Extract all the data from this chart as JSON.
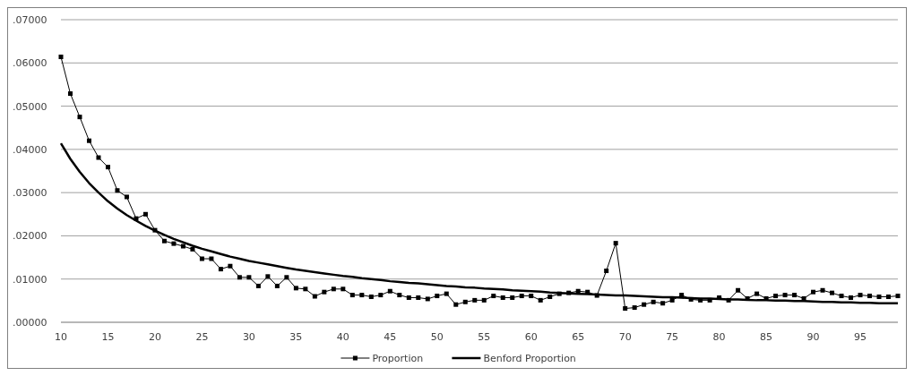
{
  "chart_data": {
    "type": "line",
    "x": [
      10,
      11,
      12,
      13,
      14,
      15,
      16,
      17,
      18,
      19,
      20,
      21,
      22,
      23,
      24,
      25,
      26,
      27,
      28,
      29,
      30,
      31,
      32,
      33,
      34,
      35,
      36,
      37,
      38,
      39,
      40,
      41,
      42,
      43,
      44,
      45,
      46,
      47,
      48,
      49,
      50,
      51,
      52,
      53,
      54,
      55,
      56,
      57,
      58,
      59,
      60,
      61,
      62,
      63,
      64,
      65,
      66,
      67,
      68,
      69,
      70,
      71,
      72,
      73,
      74,
      75,
      76,
      77,
      78,
      79,
      80,
      81,
      82,
      83,
      84,
      85,
      86,
      87,
      88,
      89,
      90,
      91,
      92,
      93,
      94,
      95,
      96,
      97,
      98,
      99
    ],
    "xlim": [
      10,
      99
    ],
    "xticks": [
      10,
      15,
      20,
      25,
      30,
      35,
      40,
      45,
      50,
      55,
      60,
      65,
      70,
      75,
      80,
      85,
      90,
      95
    ],
    "ylim": [
      0,
      0.07
    ],
    "yticks": [
      {
        "value": 0,
        "label": ".00000"
      },
      {
        "value": 0.01,
        "label": ".01000"
      },
      {
        "value": 0.02,
        "label": ".02000"
      },
      {
        "value": 0.03,
        "label": ".03000"
      },
      {
        "value": 0.04,
        "label": ".04000"
      },
      {
        "value": 0.05,
        "label": ".05000"
      },
      {
        "value": 0.06,
        "label": ".06000"
      },
      {
        "value": 0.07,
        "label": ".07000"
      }
    ],
    "grid": "y",
    "legend": "bottom",
    "series": [
      {
        "name": "Proportion",
        "color": "#000000",
        "marker": "square",
        "values": [
          0.0614,
          0.0529,
          0.0475,
          0.042,
          0.0381,
          0.0359,
          0.0305,
          0.029,
          0.024,
          0.025,
          0.0213,
          0.0188,
          0.0182,
          0.0176,
          0.0169,
          0.0147,
          0.0147,
          0.0123,
          0.013,
          0.0104,
          0.0104,
          0.0084,
          0.0106,
          0.0084,
          0.0104,
          0.0079,
          0.0077,
          0.006,
          0.007,
          0.0077,
          0.0077,
          0.0063,
          0.0063,
          0.0059,
          0.0063,
          0.0072,
          0.0063,
          0.0057,
          0.0057,
          0.0054,
          0.0061,
          0.0066,
          0.0041,
          0.0047,
          0.0051,
          0.0051,
          0.0061,
          0.0057,
          0.0057,
          0.0061,
          0.0061,
          0.0051,
          0.0059,
          0.0066,
          0.0068,
          0.0072,
          0.007,
          0.0062,
          0.0119,
          0.0183,
          0.0032,
          0.0034,
          0.0041,
          0.0047,
          0.0044,
          0.0051,
          0.0063,
          0.0053,
          0.0051,
          0.0051,
          0.0057,
          0.0051,
          0.0074,
          0.0055,
          0.0066,
          0.0055,
          0.0061,
          0.0063,
          0.0063,
          0.0055,
          0.007,
          0.0074,
          0.0068,
          0.0061,
          0.0057,
          0.0063,
          0.0061,
          0.0059,
          0.0059,
          0.0061
        ]
      },
      {
        "name": "Benford Proportion",
        "color": "#000000",
        "marker": "none",
        "values": [
          0.0414,
          0.0378,
          0.0348,
          0.0322,
          0.03,
          0.028,
          0.0263,
          0.0248,
          0.0235,
          0.0223,
          0.0212,
          0.0202,
          0.0193,
          0.0185,
          0.0177,
          0.017,
          0.0164,
          0.0158,
          0.0152,
          0.0147,
          0.0142,
          0.0138,
          0.0134,
          0.013,
          0.0126,
          0.0122,
          0.0119,
          0.0116,
          0.0113,
          0.011,
          0.0107,
          0.0105,
          0.0102,
          0.01,
          0.0098,
          0.0095,
          0.0093,
          0.0091,
          0.009,
          0.0088,
          0.0086,
          0.0084,
          0.0083,
          0.0081,
          0.008,
          0.0078,
          0.0077,
          0.0076,
          0.0074,
          0.0073,
          0.0072,
          0.0071,
          0.0069,
          0.0068,
          0.0067,
          0.0066,
          0.0065,
          0.0064,
          0.0063,
          0.0062,
          0.0062,
          0.0061,
          0.006,
          0.0059,
          0.0058,
          0.0058,
          0.0057,
          0.0056,
          0.0055,
          0.0055,
          0.0054,
          0.0053,
          0.0053,
          0.0052,
          0.0051,
          0.0051,
          0.005,
          0.005,
          0.0049,
          0.0049,
          0.0048,
          0.0047,
          0.0047,
          0.0046,
          0.0046,
          0.0045,
          0.0045,
          0.0044,
          0.0044,
          0.0044
        ]
      }
    ]
  }
}
